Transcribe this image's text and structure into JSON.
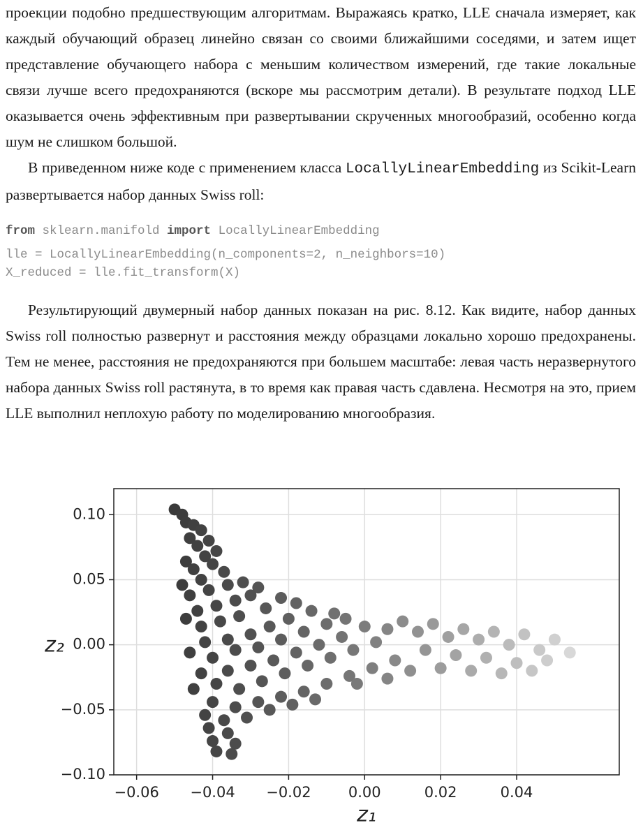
{
  "document": {
    "paragraph_1": "проекции подобно предшествующим алгоритмам. Выражаясь кратко, LLE сначала измеряет, как каждый обучающий образец линейно связан со своими ближайшими соседями, и затем ищет представление обучающего набора с меньшим количеством измерений, где такие локальные связи лучше всего предохраняются (вскоре мы рассмотрим детали). В результате подход LLE оказывается очень эффективным при развертывании скрученных многообразий, особенно когда шум не слишком большой.",
    "paragraph_2": [
      "В приведенном ниже коде с применением класса ",
      "LocallyLinearEmbedding",
      " из Scikit-Learn развертывается набор данных Swiss roll:"
    ],
    "code": {
      "line_1": [
        "from",
        " sklearn.manifold ",
        "import",
        " LocallyLinearEmbedding"
      ],
      "line_2": "lle = LocallyLinearEmbedding(n_components=2, n_neighbors=10)",
      "line_3": "X_reduced = lle.fit_transform(X)"
    },
    "paragraph_3": "Результирующий двумерный набор данных показан на рис. 8.12. Как видите, набор данных Swiss roll полностью развернут и расстояния между образцами локально хорошо предохранены. Тем не менее, расстояния не предохраняются при большем масштабе: левая часть неразвернутого набора данных Swiss roll растянута, в то время как правая часть сдавлена. Несмотря на это, прием LLE выполнил неплохую работу по моделированию многообразия."
  },
  "chart_data": {
    "type": "scatter",
    "x_label": "z₁",
    "y_label": "z₂",
    "xlim": [
      -0.066,
      0.067
    ],
    "ylim": [
      -0.1,
      0.12
    ],
    "xticks": [
      {
        "value": -0.06,
        "label": "−0.06"
      },
      {
        "value": -0.04,
        "label": "−0.04"
      },
      {
        "value": -0.02,
        "label": "−0.02"
      },
      {
        "value": 0,
        "label": "0.00"
      },
      {
        "value": 0.02,
        "label": "0.02"
      },
      {
        "value": 0.04,
        "label": "0.04"
      }
    ],
    "yticks": [
      {
        "value": -0.1,
        "label": "−0.10"
      },
      {
        "value": -0.05,
        "label": "−0.05"
      },
      {
        "value": 0,
        "label": "0.00"
      },
      {
        "value": 0.05,
        "label": "0.05"
      },
      {
        "value": 0.1,
        "label": "0.10"
      }
    ],
    "grid": true,
    "color_from": "#2e2e2e",
    "color_to": "#f0f0f0",
    "x": [
      -0.05,
      -0.048,
      -0.047,
      -0.045,
      -0.043,
      -0.046,
      -0.044,
      -0.041,
      -0.039,
      -0.042,
      -0.047,
      -0.045,
      -0.04,
      -0.037,
      -0.043,
      -0.048,
      -0.046,
      -0.041,
      -0.036,
      -0.032,
      -0.028,
      -0.03,
      -0.034,
      -0.039,
      -0.044,
      -0.047,
      -0.043,
      -0.038,
      -0.033,
      -0.026,
      -0.022,
      -0.018,
      -0.014,
      -0.02,
      -0.025,
      -0.03,
      -0.036,
      -0.042,
      -0.046,
      -0.04,
      -0.034,
      -0.028,
      -0.022,
      -0.016,
      -0.01,
      -0.005,
      0.0,
      -0.006,
      -0.012,
      -0.018,
      -0.024,
      -0.03,
      -0.036,
      -0.043,
      -0.045,
      -0.039,
      -0.033,
      -0.027,
      -0.021,
      -0.015,
      -0.009,
      -0.003,
      0.003,
      0.006,
      0.01,
      0.014,
      0.018,
      0.022,
      0.026,
      0.03,
      0.034,
      0.038,
      0.042,
      0.046,
      0.05,
      0.054,
      0.048,
      0.04,
      0.032,
      0.024,
      0.016,
      0.008,
      0.002,
      -0.004,
      -0.01,
      -0.016,
      -0.022,
      -0.028,
      -0.034,
      -0.04,
      -0.042,
      -0.037,
      -0.031,
      -0.025,
      -0.019,
      -0.013,
      -0.041,
      -0.036,
      -0.04,
      -0.034,
      -0.039,
      -0.035,
      0.012,
      0.02,
      0.028,
      0.036,
      0.044,
      -0.008,
      -0.002,
      0.006
    ],
    "y": [
      0.104,
      0.1,
      0.094,
      0.092,
      0.088,
      0.082,
      0.076,
      0.08,
      0.072,
      0.068,
      0.064,
      0.058,
      0.062,
      0.056,
      0.05,
      0.046,
      0.038,
      0.042,
      0.046,
      0.048,
      0.044,
      0.038,
      0.034,
      0.03,
      0.026,
      0.02,
      0.014,
      0.018,
      0.022,
      0.028,
      0.036,
      0.032,
      0.026,
      0.02,
      0.014,
      0.008,
      0.004,
      0.002,
      -0.006,
      -0.01,
      -0.004,
      -0.002,
      0.004,
      0.01,
      0.016,
      0.02,
      0.014,
      0.006,
      0.0,
      -0.006,
      -0.012,
      -0.016,
      -0.02,
      -0.022,
      -0.034,
      -0.03,
      -0.034,
      -0.028,
      -0.022,
      -0.016,
      -0.01,
      -0.004,
      0.002,
      0.012,
      0.018,
      0.01,
      0.016,
      0.006,
      0.012,
      0.004,
      0.01,
      0.0,
      0.008,
      -0.004,
      0.004,
      -0.006,
      -0.012,
      -0.014,
      -0.01,
      -0.008,
      -0.004,
      -0.012,
      -0.018,
      -0.024,
      -0.03,
      -0.036,
      -0.04,
      -0.044,
      -0.048,
      -0.044,
      -0.054,
      -0.058,
      -0.056,
      -0.05,
      -0.046,
      -0.042,
      -0.064,
      -0.068,
      -0.074,
      -0.076,
      -0.082,
      -0.084,
      -0.02,
      -0.018,
      -0.02,
      -0.022,
      -0.02,
      0.024,
      -0.03,
      -0.026
    ]
  }
}
